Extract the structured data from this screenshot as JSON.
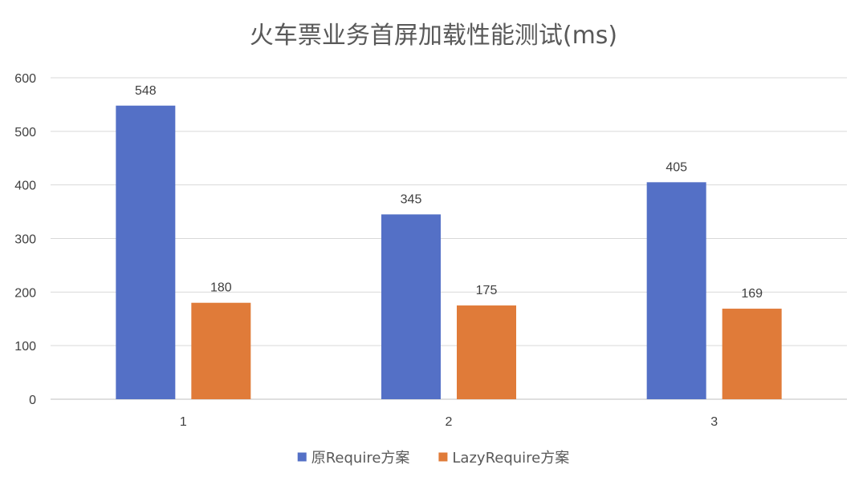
{
  "chart_data": {
    "type": "bar",
    "title": "火车票业务首屏加载性能测试(ms)",
    "xlabel": "",
    "ylabel": "",
    "categories": [
      "1",
      "2",
      "3"
    ],
    "series": [
      {
        "name": "原Require方案",
        "values": [
          548,
          345,
          405
        ],
        "color": "#5470c6"
      },
      {
        "name": "LazyRequire方案",
        "values": [
          180,
          175,
          169
        ],
        "color": "#e07b39"
      }
    ],
    "ylim": [
      0,
      600
    ],
    "yticks": [
      0,
      100,
      200,
      300,
      400,
      500,
      600
    ],
    "grid": true,
    "legend": "bottom-center",
    "data_labels": true
  }
}
